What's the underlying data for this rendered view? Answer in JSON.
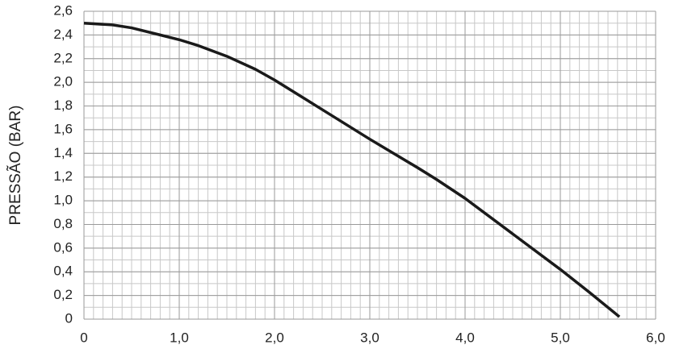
{
  "chart_data": {
    "type": "line",
    "y_label": "PRESSÃO (BAR)",
    "x": [
      0,
      0.3,
      0.5,
      0.8,
      1.0,
      1.2,
      1.5,
      1.8,
      2.0,
      2.5,
      3.0,
      3.5,
      3.7,
      4.0,
      4.5,
      5.0,
      5.3,
      5.62
    ],
    "series": [
      {
        "name": "PRESSÃO",
        "color": "#1a1a1a",
        "values": [
          2.5,
          2.485,
          2.46,
          2.4,
          2.36,
          2.31,
          2.22,
          2.11,
          2.02,
          1.77,
          1.52,
          1.28,
          1.18,
          1.02,
          0.72,
          0.42,
          0.23,
          0.02
        ]
      }
    ],
    "xlim": [
      0,
      6
    ],
    "ylim": [
      0,
      2.6
    ],
    "xticks": [
      0,
      {
        "value": 1,
        "label": "1,0"
      },
      {
        "value": 2,
        "label": "2,0"
      },
      {
        "value": 3,
        "label": "3,0"
      },
      {
        "value": 4,
        "label": "4,0"
      },
      {
        "value": 5,
        "label": "5,0"
      },
      {
        "value": 6,
        "label": "6,0"
      }
    ],
    "yticks": [
      0,
      {
        "value": 0.2,
        "label": "0,2"
      },
      {
        "value": 0.4,
        "label": "0,4"
      },
      {
        "value": 0.6,
        "label": "0,6"
      },
      {
        "value": 0.8,
        "label": "0,8"
      },
      {
        "value": 1.0,
        "label": "1,0"
      },
      {
        "value": 1.2,
        "label": "1,2"
      },
      {
        "value": 1.4,
        "label": "1,4"
      },
      {
        "value": 1.6,
        "label": "1,6"
      },
      {
        "value": 1.8,
        "label": "1,8"
      },
      {
        "value": 2.0,
        "label": "2,0"
      },
      {
        "value": 2.2,
        "label": "2,2"
      },
      {
        "value": 2.4,
        "label": "2,4"
      },
      {
        "value": 2.6,
        "label": "2,6"
      }
    ],
    "grid": true,
    "minor_grid_step": {
      "x": 0.1,
      "y": 0.1
    }
  }
}
